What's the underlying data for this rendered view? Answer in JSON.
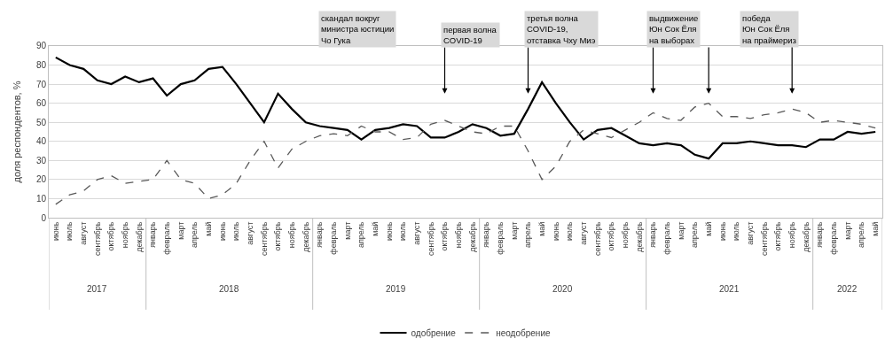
{
  "chart_data": {
    "type": "line",
    "ylabel": "доля респондентов, %",
    "ylim": [
      0,
      90
    ],
    "yticks": [
      0,
      10,
      20,
      30,
      40,
      50,
      60,
      70,
      80,
      90
    ],
    "grid": "y",
    "legend": "bottom",
    "marker": "none",
    "categories": [
      "июнь",
      "июль",
      "август",
      "сентябрь",
      "октябрь",
      "ноябрь",
      "декабрь",
      "январь",
      "февраль",
      "март",
      "апрель",
      "май",
      "июнь",
      "июль",
      "август",
      "сентябрь",
      "октябрь",
      "ноябрь",
      "декабрь",
      "январь",
      "февраль",
      "март",
      "апрель",
      "май",
      "июнь",
      "июль",
      "август",
      "сентябрь",
      "октябрь",
      "ноябрь",
      "декабрь",
      "январь",
      "февраль",
      "март",
      "апрель",
      "май",
      "июнь",
      "июль",
      "август",
      "сентябрь",
      "октябрь",
      "ноябрь",
      "декабрь",
      "январь",
      "февраль",
      "март",
      "апрель",
      "май",
      "июнь",
      "июль",
      "август",
      "сентябрь",
      "октябрь",
      "ноябрь",
      "декабрь",
      "январь",
      "февраль",
      "март",
      "апрель",
      "май"
    ],
    "series": [
      {
        "name": "одобрение",
        "color": "#000000",
        "line_style": "solid",
        "values": [
          84,
          80,
          78,
          72,
          70,
          74,
          71,
          73,
          64,
          70,
          72,
          78,
          79,
          70,
          60,
          50,
          65,
          57,
          50,
          48,
          47,
          46,
          41,
          46,
          47,
          49,
          48,
          42,
          42,
          45,
          49,
          47,
          43,
          44,
          57,
          71,
          60,
          50,
          41,
          46,
          47,
          43,
          39,
          38,
          39,
          38,
          33,
          31,
          39,
          39,
          40,
          39,
          38,
          38,
          37,
          41,
          41,
          45,
          44,
          45
        ]
      },
      {
        "name": "неодобрение",
        "color": "#595959",
        "line_style": "dashed",
        "values": [
          7,
          12,
          14,
          20,
          22,
          18,
          19,
          20,
          30,
          20,
          18,
          10,
          12,
          18,
          30,
          40,
          26,
          36,
          40,
          43,
          44,
          43,
          48,
          45,
          45,
          41,
          42,
          49,
          51,
          48,
          45,
          44,
          48,
          48,
          35,
          20,
          27,
          40,
          46,
          44,
          42,
          46,
          50,
          55,
          52,
          51,
          58,
          60,
          53,
          53,
          52,
          54,
          55,
          57,
          55,
          50,
          51,
          50,
          49,
          47
        ]
      }
    ],
    "annotations": [
      "2017",
      "2018",
      "2019",
      "2020",
      "2021",
      "2022",
      "скандал вокруг\nминистра юстиции\nЧо Гука",
      "первая волна\nCOVID-19",
      "третья волна\nCOVID-19,\nотставка Чху Миэ",
      "выдвижение\nЮн Сок Ёля\nна выборах",
      "победа\nЮн Сок Ёля\nна праймериз"
    ]
  }
}
